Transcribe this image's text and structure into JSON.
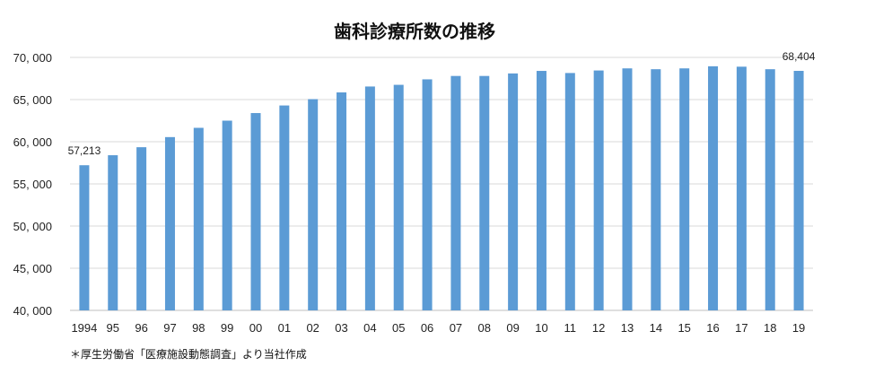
{
  "chart_data": {
    "type": "bar",
    "title": "歯科診療所数の推移",
    "xlabel": "",
    "ylabel": "",
    "categories": [
      "1994",
      "95",
      "96",
      "97",
      "98",
      "99",
      "00",
      "01",
      "02",
      "03",
      "04",
      "05",
      "06",
      "07",
      "08",
      "09",
      "10",
      "11",
      "12",
      "13",
      "14",
      "15",
      "16",
      "17",
      "18",
      "19"
    ],
    "series": [
      {
        "values": [
          57213,
          58400,
          59350,
          60550,
          61650,
          62500,
          63400,
          64300,
          65050,
          65850,
          66550,
          66750,
          67400,
          67800,
          67800,
          68100,
          68400,
          68150,
          68450,
          68700,
          68600,
          68700,
          68950,
          68900,
          68600,
          68404
        ]
      }
    ],
    "data_labels": [
      {
        "index": 0,
        "text": "57,213"
      },
      {
        "index": 25,
        "text": "68,404"
      }
    ],
    "ylim": [
      40000,
      70000
    ],
    "yticks": [
      {
        "value": 40000,
        "label": "40, 000"
      },
      {
        "value": 45000,
        "label": "45, 000"
      },
      {
        "value": 50000,
        "label": "50, 000"
      },
      {
        "value": 55000,
        "label": "55, 000"
      },
      {
        "value": 60000,
        "label": "60, 000"
      },
      {
        "value": 65000,
        "label": "65, 000"
      },
      {
        "value": 70000,
        "label": "70, 000"
      }
    ],
    "grid": true,
    "bar_color": "#5b9bd5",
    "gridline_color": "#d9d9d9",
    "axis_color": "#bfbfbf",
    "footnote": "＊厚生労働省「医療施設動態調査」より当社作成"
  }
}
